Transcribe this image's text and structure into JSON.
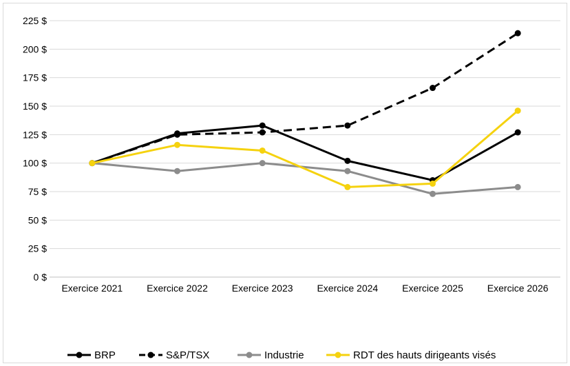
{
  "chart_data": {
    "type": "line",
    "categories": [
      "Exercice 2021",
      "Exercice 2022",
      "Exercice 2023",
      "Exercice 2024",
      "Exercice 2025",
      "Exercice 2026"
    ],
    "ylim": [
      0,
      225
    ],
    "yticks": [
      0,
      25,
      50,
      75,
      100,
      125,
      150,
      175,
      200,
      225
    ],
    "ytick_suffix": " $",
    "grid": "horizontal",
    "legend_position": "bottom",
    "series": [
      {
        "name": "BRP",
        "values": [
          100,
          126,
          133,
          102,
          85,
          127
        ],
        "color": "#000000",
        "dash": "solid"
      },
      {
        "name": "S&P/TSX",
        "values": [
          100,
          125,
          127,
          133,
          166,
          214
        ],
        "color": "#000000",
        "dash": "dashed"
      },
      {
        "name": "Industrie",
        "values": [
          100,
          93,
          100,
          93,
          73,
          79
        ],
        "color": "#8c8c8c",
        "dash": "solid"
      },
      {
        "name": "RDT des hauts dirigeants visés",
        "values": [
          100,
          116,
          111,
          79,
          82,
          146
        ],
        "color": "#f5d20f",
        "dash": "solid"
      }
    ]
  }
}
